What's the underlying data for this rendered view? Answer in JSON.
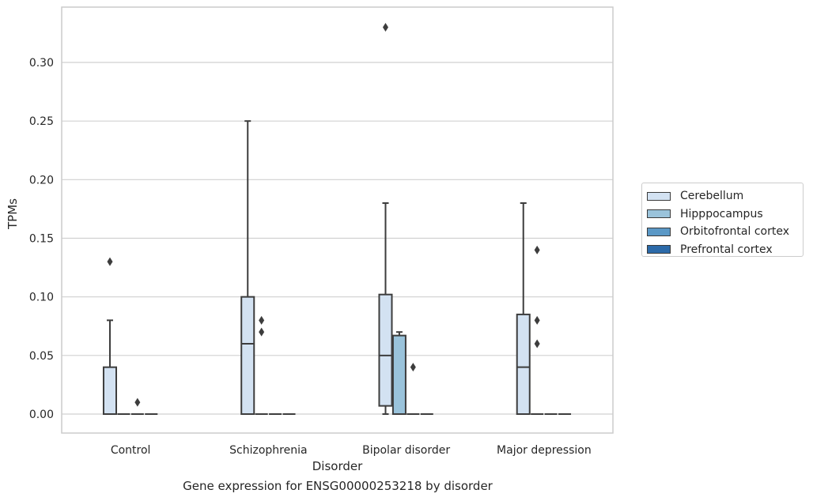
{
  "chart_data": {
    "type": "box",
    "title": "",
    "caption": "Gene expression for ENSG00000253218 by disorder",
    "xlabel": "Disorder",
    "ylabel": "TPMs",
    "ylim": [
      -0.016,
      0.35
    ],
    "yticks": [
      "0.00",
      "0.05",
      "0.10",
      "0.15",
      "0.20",
      "0.25",
      "0.30"
    ],
    "grid": "horizontal",
    "legend_position": "right",
    "categories": [
      "Control",
      "Schizophrenia",
      "Bipolar disorder",
      "Major depression"
    ],
    "series": [
      {
        "name": "Cerebellum",
        "color": "#d3e2f2",
        "boxes": [
          {
            "whislo": 0.0,
            "q1": 0.0,
            "med": 0.0,
            "q3": 0.04,
            "whishi": 0.08,
            "fliers": [
              0.13
            ]
          },
          {
            "whislo": 0.0,
            "q1": 0.0,
            "med": 0.06,
            "q3": 0.1,
            "whishi": 0.25,
            "fliers": []
          },
          {
            "whislo": 0.0,
            "q1": 0.007,
            "med": 0.05,
            "q3": 0.102,
            "whishi": 0.18,
            "fliers": [
              0.33
            ]
          },
          {
            "whislo": 0.0,
            "q1": 0.0,
            "med": 0.04,
            "q3": 0.085,
            "whishi": 0.18,
            "fliers": []
          }
        ]
      },
      {
        "name": "Hipppocampus",
        "color": "#9ac3db",
        "boxes": [
          {
            "whislo": 0.0,
            "q1": 0.0,
            "med": 0.0,
            "q3": 0.0,
            "whishi": 0.0,
            "fliers": []
          },
          {
            "whislo": 0.0,
            "q1": 0.0,
            "med": 0.0,
            "q3": 0.0,
            "whishi": 0.0,
            "fliers": [
              0.07,
              0.08
            ]
          },
          {
            "whislo": 0.0,
            "q1": 0.0,
            "med": 0.0,
            "q3": 0.067,
            "whishi": 0.07,
            "fliers": []
          },
          {
            "whislo": 0.0,
            "q1": 0.0,
            "med": 0.0,
            "q3": 0.0,
            "whishi": 0.0,
            "fliers": [
              0.06,
              0.08,
              0.14
            ]
          }
        ]
      },
      {
        "name": "Orbitofrontal cortex",
        "color": "#5a98c6",
        "boxes": [
          {
            "whislo": 0.0,
            "q1": 0.0,
            "med": 0.0,
            "q3": 0.0,
            "whishi": 0.0,
            "fliers": [
              0.01
            ]
          },
          {
            "whislo": 0.0,
            "q1": 0.0,
            "med": 0.0,
            "q3": 0.0,
            "whishi": 0.0,
            "fliers": []
          },
          {
            "whislo": 0.0,
            "q1": 0.0,
            "med": 0.0,
            "q3": 0.0,
            "whishi": 0.0,
            "fliers": [
              0.04
            ]
          },
          {
            "whislo": 0.0,
            "q1": 0.0,
            "med": 0.0,
            "q3": 0.0,
            "whishi": 0.0,
            "fliers": []
          }
        ]
      },
      {
        "name": "Prefrontal cortex",
        "color": "#2c6aa9",
        "boxes": [
          {
            "whislo": 0.0,
            "q1": 0.0,
            "med": 0.0,
            "q3": 0.0,
            "whishi": 0.0,
            "fliers": []
          },
          {
            "whislo": 0.0,
            "q1": 0.0,
            "med": 0.0,
            "q3": 0.0,
            "whishi": 0.0,
            "fliers": []
          },
          {
            "whislo": 0.0,
            "q1": 0.0,
            "med": 0.0,
            "q3": 0.0,
            "whishi": 0.0,
            "fliers": []
          },
          {
            "whislo": 0.0,
            "q1": 0.0,
            "med": 0.0,
            "q3": 0.0,
            "whishi": 0.0,
            "fliers": []
          }
        ]
      }
    ]
  }
}
